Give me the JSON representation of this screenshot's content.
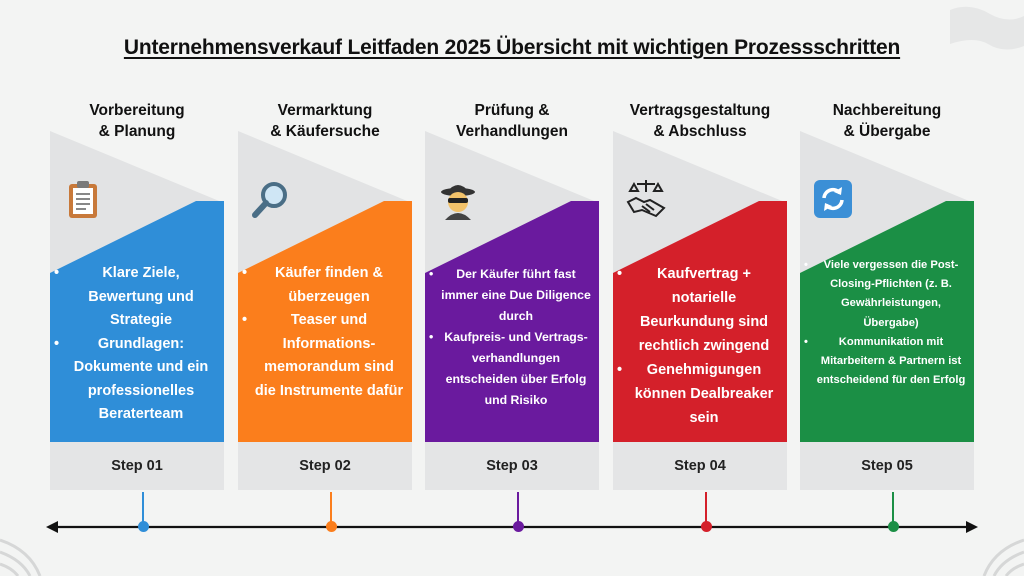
{
  "title": "Unternehmensverkauf Leitfaden 2025 Übersicht mit wichtigen Prozessschritten",
  "colors": {
    "background": "#f3f4f3",
    "panel_light": "#e2e3e4",
    "step_label_bg": "#e4e5e6",
    "timeline": "#111111"
  },
  "steps": [
    {
      "heading_line1": "Vorbereitung",
      "heading_line2": "& Planung",
      "icon": "clipboard-icon",
      "color": "#2f8ed8",
      "bullets": [
        "Klare Ziele, Bewertung und Strategie",
        "Grundlagen: Dokumente und ein professionelles Beraterteam"
      ],
      "label": "Step 01"
    },
    {
      "heading_line1": "Vermarktung",
      "heading_line2": "& Käufersuche",
      "icon": "magnifier-icon",
      "color": "#fb7e1c",
      "bullets": [
        "Käufer finden & überzeugen",
        "Teaser und Informations-memorandum sind die Instrumente dafür"
      ],
      "label": "Step 02"
    },
    {
      "heading_line1": "Prüfung &",
      "heading_line2": "Verhandlungen",
      "icon": "spy-icon",
      "color": "#6a1a9e",
      "bullets": [
        "Der Käufer führt fast immer eine Due Diligence durch",
        "Kaufpreis- und Vertrags-verhandlungen entscheiden über Erfolg und Risiko"
      ],
      "label": "Step 03"
    },
    {
      "heading_line1": "Vertragsgestaltung",
      "heading_line2": "& Abschluss",
      "icon": "handshake-scale-icon",
      "color": "#d4202a",
      "bullets": [
        "Kaufvertrag + notarielle Beurkundung sind rechtlich zwingend",
        "Genehmigungen können Dealbreaker sein"
      ],
      "label": "Step 04"
    },
    {
      "heading_line1": "Nachbereitung",
      "heading_line2": "& Übergabe",
      "icon": "refresh-icon",
      "color": "#1b8f45",
      "bullets": [
        "Viele vergessen die Post-Closing-Pflichten (z. B. Gewährleistungen, Übergabe)",
        "Kommunikation mit Mitarbeitern & Partnern ist entscheidend für den Erfolg"
      ],
      "label": "Step 05"
    }
  ]
}
